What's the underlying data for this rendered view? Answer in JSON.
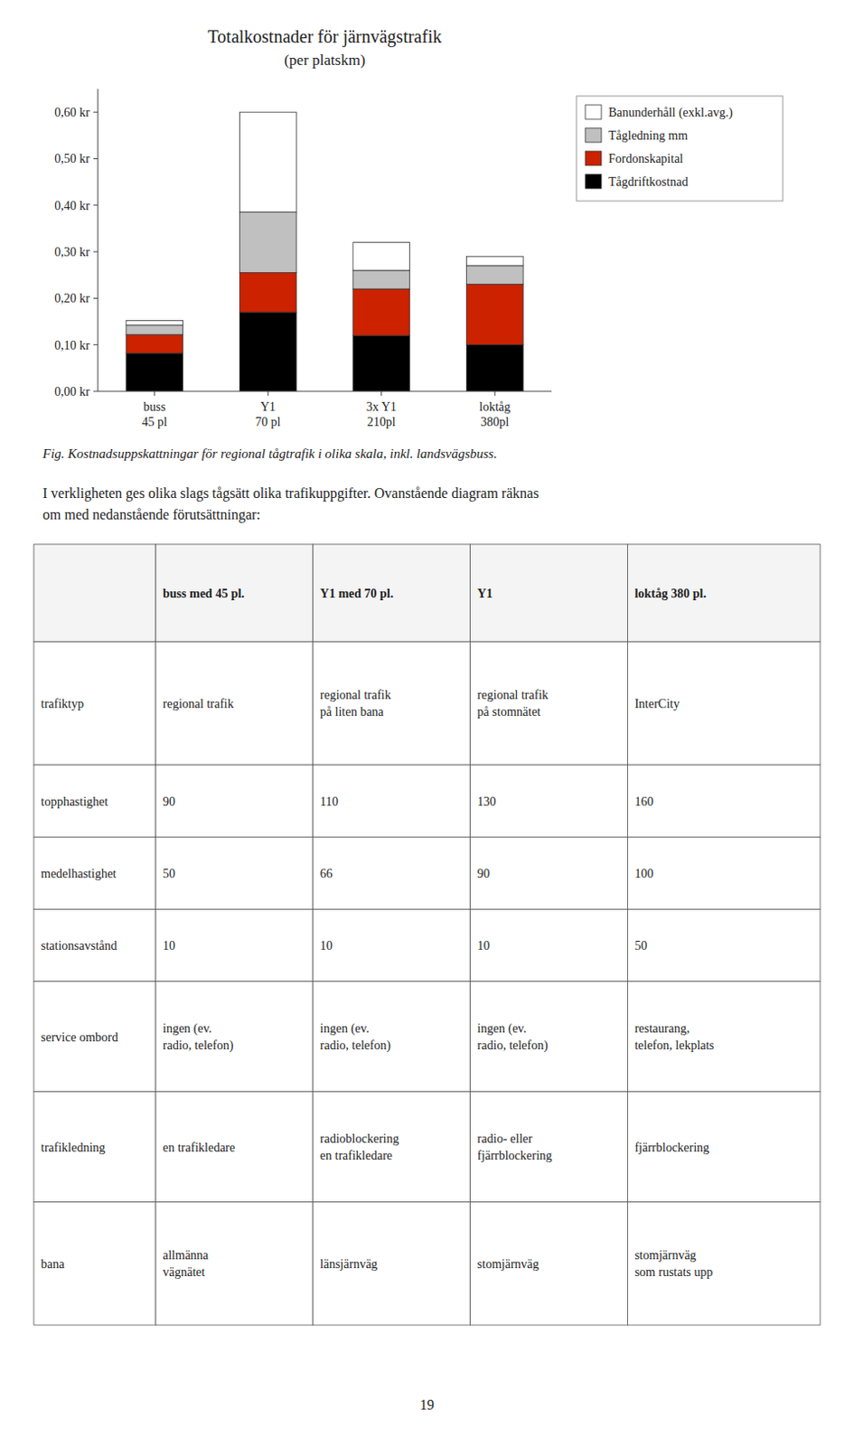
{
  "chart_data": {
    "type": "bar",
    "stacked": true,
    "grid": false,
    "legend": "right",
    "title": "Totalkostnader för järnvägstrafik",
    "subtitle": "(per platskm)",
    "categories": [
      "buss\n45 pl",
      "Y1\n70 pl",
      "3x Y1\n210pl",
      "loktåg\n380pl"
    ],
    "series": [
      {
        "name": "Tågdriftkostnad",
        "color": "#000000",
        "values": [
          0.082,
          0.17,
          0.12,
          0.1
        ]
      },
      {
        "name": "Fordonskapital",
        "color": "#cc2200",
        "values": [
          0.04,
          0.085,
          0.1,
          0.13
        ]
      },
      {
        "name": "Tågledning mm",
        "color": "#c0c0c0",
        "values": [
          0.02,
          0.13,
          0.04,
          0.04
        ]
      },
      {
        "name": "Banunderhåll (exkl.avg.)",
        "color": "#ffffff",
        "values": [
          0.01,
          0.215,
          0.06,
          0.02
        ]
      }
    ],
    "ylim": [
      0.0,
      0.65
    ],
    "yticks": [
      {
        "value": 0.0,
        "label": "0,00 kr"
      },
      {
        "value": 0.1,
        "label": "0,10 kr"
      },
      {
        "value": 0.2,
        "label": "0,20 kr"
      },
      {
        "value": 0.3,
        "label": "0,30 kr"
      },
      {
        "value": 0.4,
        "label": "0,40 kr"
      },
      {
        "value": 0.5,
        "label": "0,50 kr"
      },
      {
        "value": 0.6,
        "label": "0,60 kr"
      }
    ]
  },
  "caption": "Fig.  Kostnadsuppskattningar för regional tågtrafik i olika skala, inkl. landsvägsbuss.",
  "body_text": [
    "I verkligheten ges olika slags tågsätt olika trafikuppgifter. Ovanstående diagram räknas",
    "om med nedanstående förutsättningar:"
  ],
  "table": {
    "headers": [
      null,
      "buss med 45 pl.",
      "Y1 med 70 pl.",
      "Y1",
      "loktåg 380 pl."
    ],
    "rows": [
      [
        "trafiktyp",
        "regional trafik",
        "regional trafik\npå liten bana",
        "regional trafik\npå stomnätet",
        "InterCity"
      ],
      [
        "topphastighet",
        "90",
        "110",
        "130",
        "160"
      ],
      [
        "medelhastighet",
        "50",
        "66",
        "90",
        "100"
      ],
      [
        "stationsavstånd",
        "10",
        "10",
        "10",
        "50"
      ],
      [
        "service ombord",
        "ingen  (ev.\nradio, telefon)",
        "ingen  (ev.\nradio, telefon)",
        "ingen  (ev.\nradio, telefon)",
        "restaurang,\ntelefon, lekplats"
      ],
      [
        "trafikledning",
        "en trafikledare",
        "radioblockering\nen trafikledare",
        "radio-  eller\nfjärrblockering",
        "fjärrblockering"
      ],
      [
        "bana",
        "allmänna\nvägnätet",
        "länsjärnväg",
        "stomjärnväg",
        "stomjärnväg\nsom rustats upp"
      ]
    ]
  },
  "page_number": "19"
}
